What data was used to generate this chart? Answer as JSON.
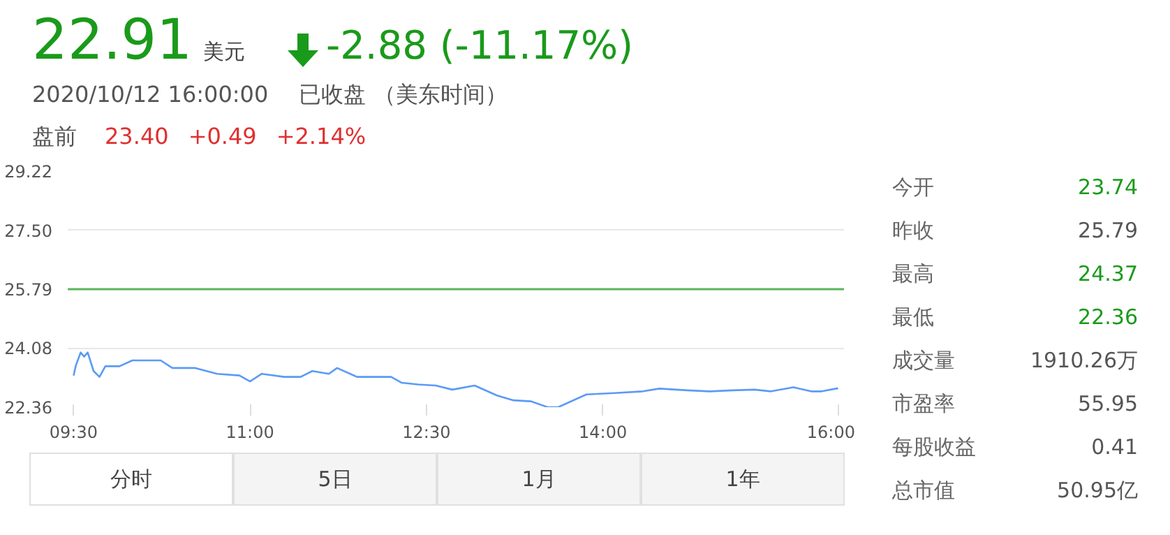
{
  "chart_data": {
    "type": "line",
    "x": [
      9.5,
      9.52,
      9.56,
      9.59,
      9.62,
      9.67,
      9.72,
      9.77,
      9.89,
      10.0,
      10.24,
      10.34,
      10.53,
      10.72,
      10.91,
      11.0,
      11.1,
      11.29,
      11.43,
      11.53,
      11.67,
      11.74,
      11.91,
      12.2,
      12.29,
      12.43,
      12.58,
      12.72,
      12.91,
      13.1,
      13.24,
      13.39,
      13.53,
      13.62,
      13.86,
      14.1,
      14.34,
      14.48,
      14.72,
      14.91,
      15.1,
      15.29,
      15.43,
      15.62,
      15.77,
      15.86,
      16.0
    ],
    "series": [
      {
        "color": "#5b9bf5",
        "values": [
          23.28,
          23.58,
          23.95,
          23.83,
          23.95,
          23.41,
          23.24,
          23.55,
          23.55,
          23.72,
          23.72,
          23.5,
          23.5,
          23.33,
          23.28,
          23.11,
          23.33,
          23.24,
          23.24,
          23.41,
          23.33,
          23.5,
          23.24,
          23.24,
          23.07,
          23.02,
          22.99,
          22.87,
          22.99,
          22.7,
          22.56,
          22.53,
          22.36,
          22.36,
          22.73,
          22.77,
          22.82,
          22.9,
          22.85,
          22.82,
          22.85,
          22.87,
          22.82,
          22.94,
          22.82,
          22.82,
          22.91
        ]
      }
    ],
    "xlim": [
      9.45,
      16.05
    ],
    "xticks": [
      {
        "value": 9.5,
        "label": "09:30"
      },
      {
        "value": 11,
        "label": "11:00"
      },
      {
        "value": 12.5,
        "label": "12:30"
      },
      {
        "value": 14,
        "label": "14:00"
      },
      {
        "value": 16,
        "label": "16:00"
      }
    ],
    "ylim": [
      22.36,
      29.22
    ],
    "yticks": [
      {
        "value": 22.36,
        "label": "22.36"
      },
      {
        "value": 24.08,
        "label": "24.08"
      },
      {
        "value": 25.79,
        "label": "25.79"
      },
      {
        "value": 27.5,
        "label": "27.50"
      },
      {
        "value": 29.22,
        "label": "29.22"
      }
    ],
    "grid": "y",
    "marker": "none",
    "line_style": "solid",
    "ref_lines": [
      {
        "axis": "y",
        "value": 25.79,
        "color": "#5cb85c"
      }
    ],
    "annotations": [
      "22.91",
      "美元",
      "-2.88 (-11.17%)",
      "2020/10/12 16:00:00",
      "已收盘 （美东时间）",
      "盘前",
      "23.40",
      "+0.49",
      "+2.14%",
      "今开",
      "23.74",
      "昨收",
      "25.79",
      "最高",
      "24.37",
      "最低",
      "22.36",
      "成交量",
      "1910.26万",
      "市盈率",
      "55.95",
      "每股收益",
      "0.41",
      "总市值",
      "50.95亿",
      "分时",
      "5日",
      "1月",
      "1年"
    ]
  }
}
